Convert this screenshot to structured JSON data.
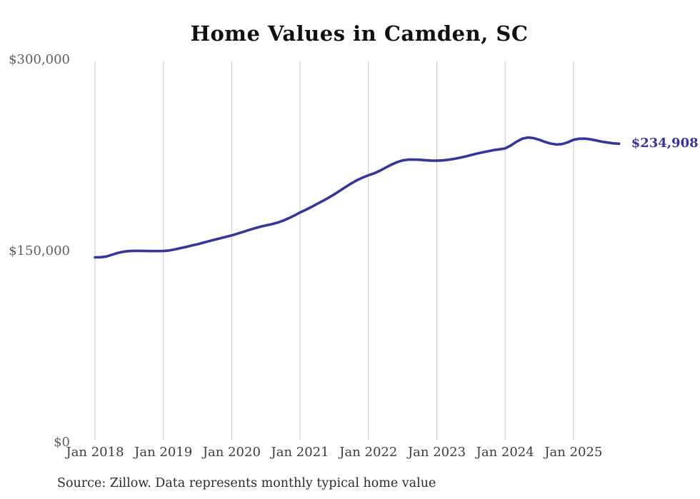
{
  "title": "Home Values in Camden, SC",
  "source_note": "Source: Zillow. Data represents monthly typical home value",
  "end_label": "$234,908",
  "colors": {
    "line": "#3633a4",
    "grid": "#c9c9c9",
    "title_text": "#111111",
    "y_tick_text": "#5f5f5f",
    "x_tick_text": "#3d3d3d",
    "source_text": "#2b2b2b",
    "background": "#ffffff"
  },
  "chart_data": {
    "type": "line",
    "title": "Home Values in Camden, SC",
    "xlabel": "",
    "ylabel": "",
    "ylim": [
      0,
      300000
    ],
    "grid": "vertical-only",
    "legend": "none",
    "frequency": "monthly",
    "x_tick_labels": [
      "Jan 2018",
      "Jan 2019",
      "Jan 2020",
      "Jan 2021",
      "Jan 2022",
      "Jan 2023",
      "Jan 2024",
      "Jan 2025"
    ],
    "y_ticks": [
      {
        "value": 0,
        "label": "$0"
      },
      {
        "value": 150000,
        "label": "$150,000"
      },
      {
        "value": 300000,
        "label": "$300,000"
      }
    ],
    "annotation": {
      "text": "$234,908",
      "position": "end-of-line"
    },
    "final_value": 234908,
    "series": [
      {
        "name": "Typical home value (USD)",
        "start": "Jan 2018",
        "end": "Sep 2025",
        "values": [
          145800,
          145900,
          146500,
          147900,
          149300,
          150200,
          150700,
          150900,
          150900,
          150800,
          150700,
          150700,
          150800,
          151200,
          152000,
          153000,
          154000,
          155100,
          156100,
          157300,
          158500,
          159700,
          160800,
          161900,
          163000,
          164400,
          165800,
          167200,
          168600,
          169800,
          170800,
          171800,
          173000,
          174500,
          176500,
          178600,
          181000,
          183100,
          185300,
          187700,
          190100,
          192600,
          195200,
          198100,
          201000,
          203800,
          206300,
          208400,
          210100,
          211700,
          213700,
          216100,
          218400,
          220400,
          221800,
          222400,
          222500,
          222300,
          222000,
          221700,
          221600,
          221800,
          222300,
          223000,
          223900,
          224900,
          226000,
          227100,
          228100,
          229000,
          229900,
          230500,
          231200,
          233500,
          236500,
          238800,
          239800,
          239300,
          238000,
          236300,
          235000,
          234300,
          234600,
          236000,
          238000,
          238800,
          238900,
          238300,
          237400,
          236500,
          235800,
          235200,
          234908
        ]
      }
    ]
  }
}
